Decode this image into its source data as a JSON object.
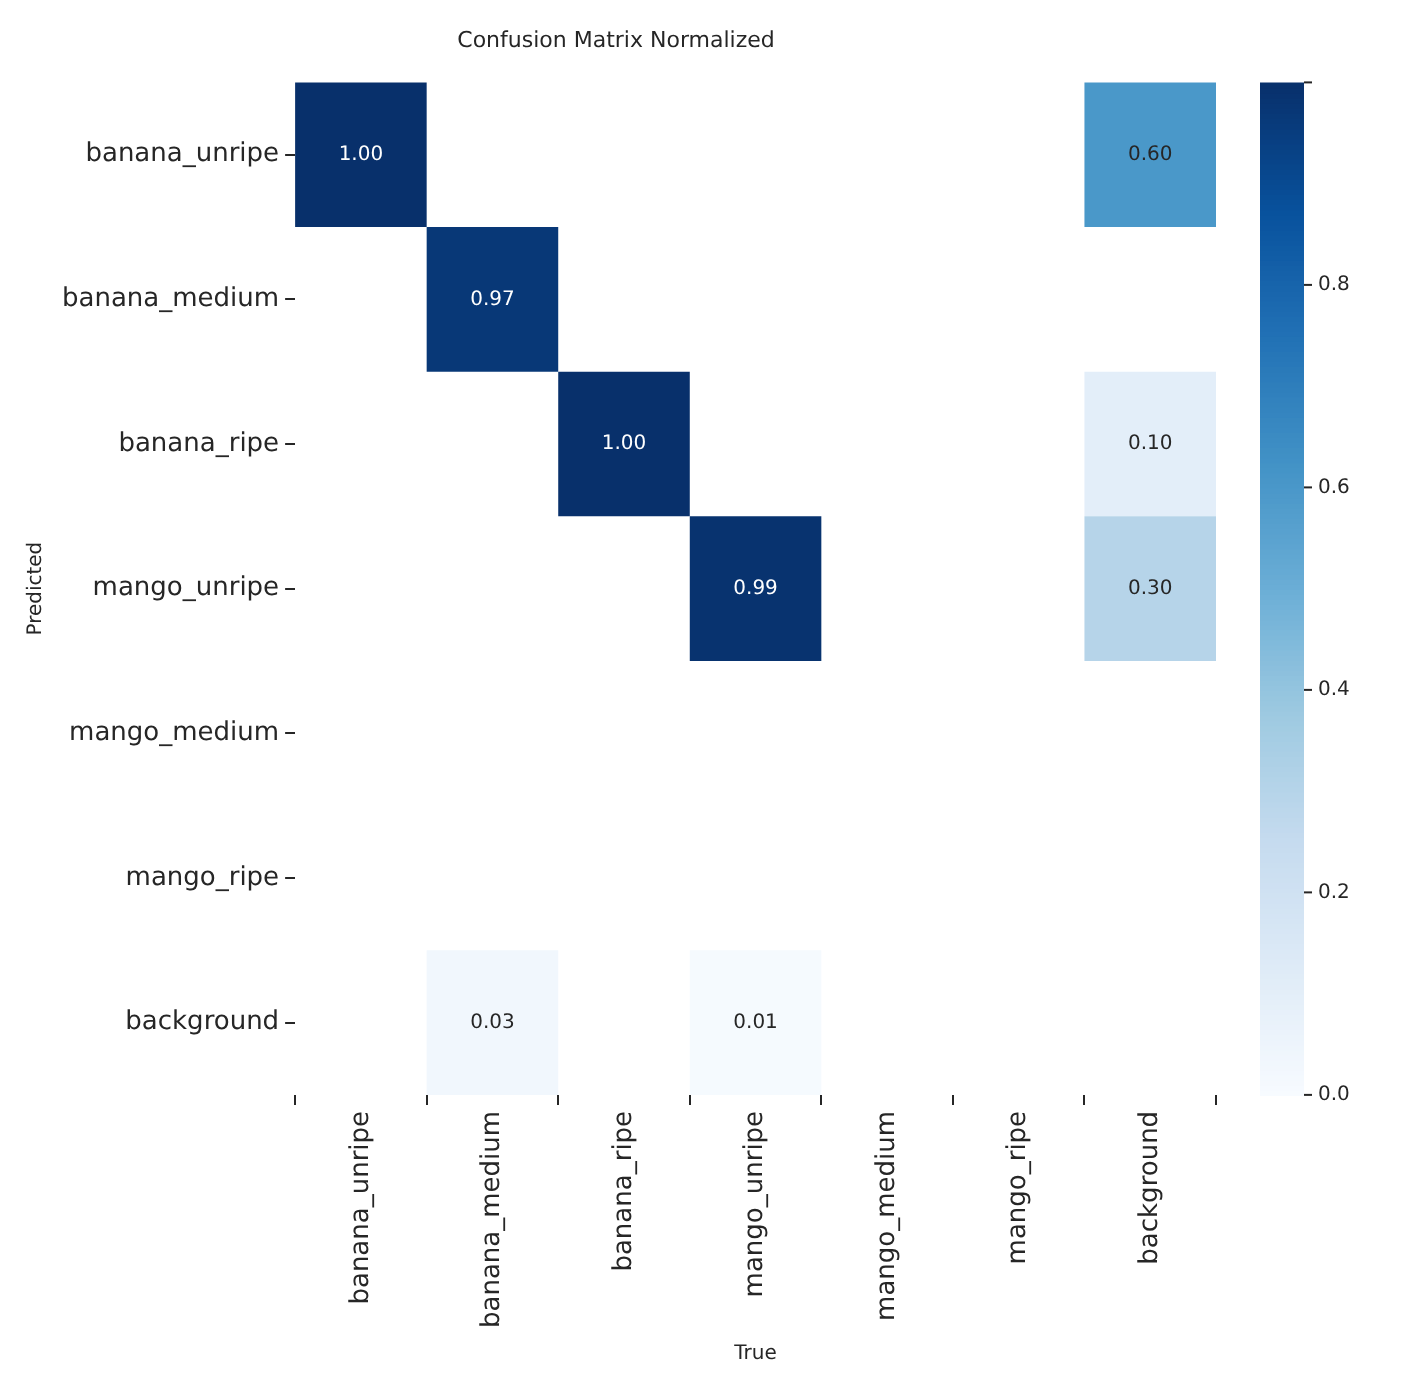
{
  "chart_data": {
    "type": "heatmap",
    "title": "Confusion Matrix Normalized",
    "xlabel": "True",
    "ylabel": "Predicted",
    "categories": [
      "banana_unripe",
      "banana_medium",
      "banana_ripe",
      "mango_unripe",
      "mango_medium",
      "mango_ripe",
      "background"
    ],
    "y_categories": [
      "banana_unripe",
      "banana_medium",
      "banana_ripe",
      "mango_unripe",
      "mango_medium",
      "mango_ripe",
      "background"
    ],
    "cells": [
      [
        1.0,
        null,
        null,
        null,
        null,
        null,
        0.6
      ],
      [
        null,
        0.97,
        null,
        null,
        null,
        null,
        null
      ],
      [
        null,
        null,
        1.0,
        null,
        null,
        null,
        0.1
      ],
      [
        null,
        null,
        null,
        0.99,
        null,
        null,
        0.3
      ],
      [
        null,
        null,
        null,
        null,
        null,
        null,
        null
      ],
      [
        null,
        null,
        null,
        null,
        null,
        null,
        null
      ],
      [
        null,
        0.03,
        null,
        0.01,
        null,
        null,
        null
      ]
    ],
    "cell_labels": [
      [
        "1.00",
        null,
        null,
        null,
        null,
        null,
        "0.60"
      ],
      [
        null,
        "0.97",
        null,
        null,
        null,
        null,
        null
      ],
      [
        null,
        null,
        "1.00",
        null,
        null,
        null,
        "0.10"
      ],
      [
        null,
        null,
        null,
        "0.99",
        null,
        null,
        "0.30"
      ],
      [
        null,
        null,
        null,
        null,
        null,
        null,
        null
      ],
      [
        null,
        null,
        null,
        null,
        null,
        null,
        null
      ],
      [
        null,
        "0.03",
        null,
        "0.01",
        null,
        null,
        null
      ]
    ],
    "clim": [
      0,
      1
    ],
    "cticks": [
      {
        "value": 0,
        "label": "0.0"
      },
      0.2,
      0.4,
      0.6,
      0.8,
      {
        "value": 1,
        "label": null
      }
    ]
  }
}
